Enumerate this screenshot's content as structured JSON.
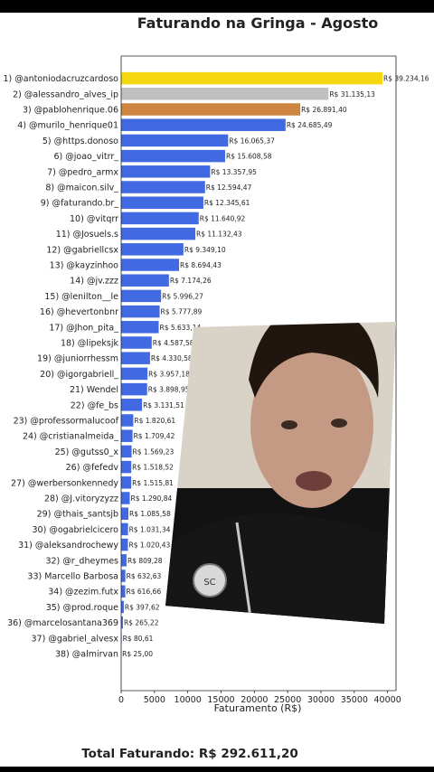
{
  "title": "Faturando na Gringa - Agosto",
  "total_label": "Total Faturando: R$ 292.611,20",
  "colors": {
    "gold": "#f5d80f",
    "silver": "#c0c0c0",
    "bronze": "#cd8540",
    "blue": "#4169e1",
    "text": "#222222"
  },
  "chart_data": {
    "type": "bar",
    "orientation": "horizontal",
    "title": "Faturando na Gringa - Agosto",
    "xlabel": "Faturamento (R$)",
    "ylabel": "",
    "xlim": [
      0,
      41000
    ],
    "xticks": [
      0,
      5000,
      10000,
      15000,
      20000,
      25000,
      30000,
      35000,
      40000
    ],
    "categories": [
      "1) @antoniodacruzcardoso",
      "2) @alessandro_alves_ip",
      "3) @pablohenrique.06",
      "4) @murilo_henrique01",
      "5) @https.donoso",
      "6) @joao_vitrr_",
      "7) @pedro_armx",
      "8) @maicon.silv_",
      "9) @faturando.br_",
      "10) @vitqrr",
      "11) @Josuels.s",
      "12) @gabriellcsx",
      "13) @kayzinhoo",
      "14) @jv.zzz",
      "15) @lenilton__le",
      "16) @hevertonbnr",
      "17) @Jhon_pita_",
      "18) @lipeksjk",
      "19) @juniorrhessm",
      "20) @igorgabriell_",
      "21) Wendel",
      "22) @fe_bs",
      "23) @professormalucoof",
      "24) @cristianalmeida_",
      "25) @gutss0_x",
      "26) @fefedv",
      "27) @werbersonkennedy",
      "28) @J.vitoryzyzz",
      "29) @thais_santsjb",
      "30) @ogabrielcicero",
      "31) @aleksandrochewy",
      "32) @r_dheymes",
      "33) Marcello Barbosa",
      "34) @zezim.futx",
      "35) @prod.roque",
      "36) @marcelosantana369",
      "37) @gabriel_alvesx",
      "38) @almirvan"
    ],
    "values": [
      39234.16,
      31135.13,
      26891.4,
      24685.49,
      16065.37,
      15608.58,
      13357.95,
      12594.47,
      12345.61,
      11640.92,
      11132.43,
      9349.1,
      8694.43,
      7174.26,
      5996.27,
      5777.89,
      5633.14,
      4587.58,
      4330.58,
      3957.18,
      3898.95,
      3131.51,
      1820.61,
      1709.42,
      1569.23,
      1518.52,
      1515.81,
      1290.84,
      1085.58,
      1031.34,
      1020.43,
      809.28,
      632.63,
      616.66,
      397.62,
      265.22,
      80.61,
      25.0
    ],
    "value_labels": [
      "R$ 39.234,16",
      "R$ 31.135,13",
      "R$ 26.891,40",
      "R$ 24.685,49",
      "R$ 16.065,37",
      "R$ 15.608,58",
      "R$ 13.357,95",
      "R$ 12.594,47",
      "R$ 12.345,61",
      "R$ 11.640,92",
      "R$ 11.132,43",
      "R$ 9.349,10",
      "R$ 8.694,43",
      "R$ 7.174,26",
      "R$ 5.996,27",
      "R$ 5.777,89",
      "R$ 5.633,14",
      "R$ 4.587,58",
      "R$ 4.330,58",
      "R$ 3.957,18",
      "R$ 3.898,95",
      "R$ 3.131,51",
      "R$ 1.820,61",
      "R$ 1.709,42",
      "R$ 1.569,23",
      "R$ 1.518,52",
      "R$ 1.515,81",
      "R$ 1.290,84",
      "R$ 1.085,58",
      "R$ 1.031,34",
      "R$ 1.020,43",
      "R$ 809,28",
      "R$ 632,63",
      "R$ 616,66",
      "R$ 397,62",
      "R$ 265,22",
      "R$ 80,61",
      "R$ 25,00"
    ],
    "grid": false,
    "legend": "none"
  }
}
